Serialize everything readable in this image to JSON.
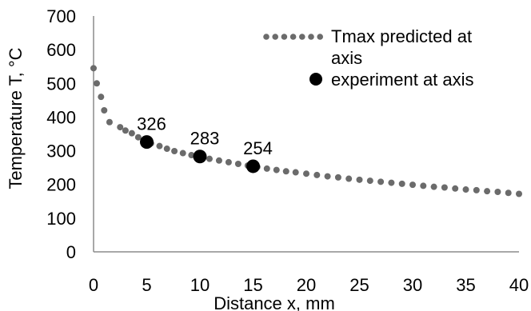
{
  "chart_data": {
    "type": "scatter",
    "xlabel": "Distance x, mm",
    "ylabel": "Temperature T, °C",
    "xlim": [
      0,
      40
    ],
    "ylim": [
      0,
      700
    ],
    "xticks": [
      0,
      5,
      10,
      15,
      20,
      25,
      30,
      35,
      40
    ],
    "yticks": [
      0,
      100,
      200,
      300,
      400,
      500,
      600,
      700
    ],
    "grid": false,
    "legend_position": "top-right",
    "series": [
      {
        "name": "Tmax predicted at axis",
        "style": "dotted-line",
        "color": "#6b6b6b",
        "points": [
          [
            0.0,
            545
          ],
          [
            0.3,
            500
          ],
          [
            0.7,
            460
          ],
          [
            1.0,
            420
          ],
          [
            1.5,
            385
          ],
          [
            2.5,
            370
          ],
          [
            3.0,
            360
          ],
          [
            3.6,
            352
          ],
          [
            4.2,
            340
          ],
          [
            4.8,
            330
          ],
          [
            5.4,
            322
          ],
          [
            6.2,
            314
          ],
          [
            6.9,
            306
          ],
          [
            7.6,
            299
          ],
          [
            8.4,
            293
          ],
          [
            9.2,
            287
          ],
          [
            10.0,
            281
          ],
          [
            10.9,
            276
          ],
          [
            11.8,
            271
          ],
          [
            12.7,
            266
          ],
          [
            13.6,
            261
          ],
          [
            14.5,
            256
          ],
          [
            15.4,
            252
          ],
          [
            16.3,
            247
          ],
          [
            17.2,
            243
          ],
          [
            18.1,
            239
          ],
          [
            19.0,
            236
          ],
          [
            20.0,
            232
          ],
          [
            21.0,
            228
          ],
          [
            22.0,
            224
          ],
          [
            23.0,
            221
          ],
          [
            24.0,
            217
          ],
          [
            25.0,
            214
          ],
          [
            26.0,
            211
          ],
          [
            27.0,
            208
          ],
          [
            28.0,
            205
          ],
          [
            29.0,
            202
          ],
          [
            30.0,
            199
          ],
          [
            31.0,
            196
          ],
          [
            32.0,
            193
          ],
          [
            33.0,
            191
          ],
          [
            34.0,
            188
          ],
          [
            35.0,
            185
          ],
          [
            36.0,
            183
          ],
          [
            37.0,
            180
          ],
          [
            38.0,
            178
          ],
          [
            39.0,
            175
          ],
          [
            40.0,
            172
          ]
        ]
      },
      {
        "name": "experiment at axis",
        "style": "marker",
        "color": "#000000",
        "points": [
          [
            5,
            326
          ],
          [
            10,
            283
          ],
          [
            15,
            254
          ]
        ],
        "labels": [
          "326",
          "283",
          "254"
        ]
      }
    ]
  }
}
